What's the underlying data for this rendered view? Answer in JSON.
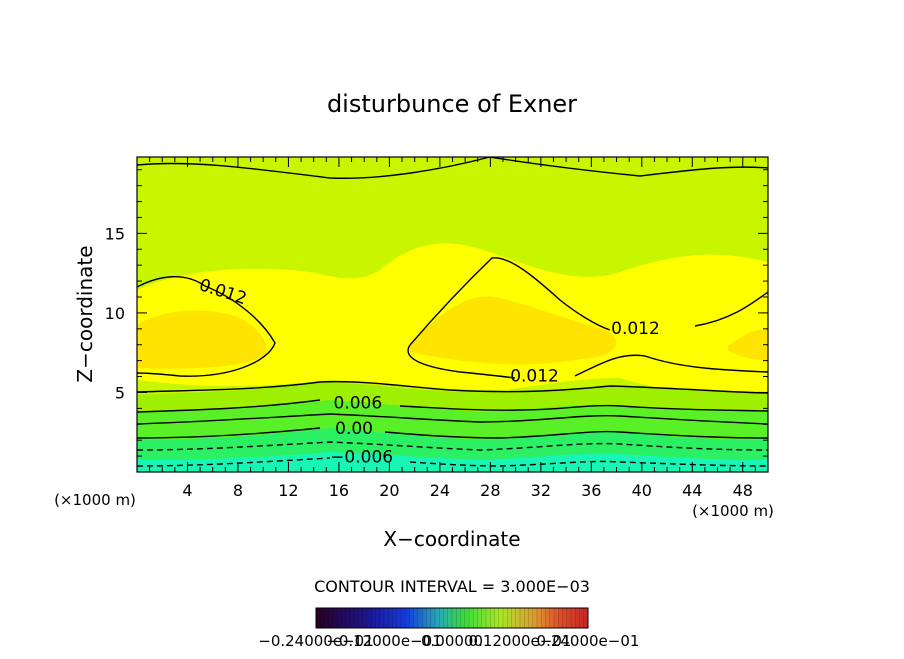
{
  "chart_data": {
    "type": "heatmap",
    "title": "disturbunce of Exner",
    "xlabel": "X−coordinate",
    "ylabel": "Z−coordinate",
    "x_unit_left": "(×1000 m)",
    "x_unit_right": "(×1000 m)",
    "xlim": [
      0,
      50
    ],
    "ylim": [
      0,
      19.8
    ],
    "x_ticks": [
      4,
      8,
      12,
      16,
      20,
      24,
      28,
      32,
      36,
      40,
      44,
      48
    ],
    "y_ticks": [
      5,
      10,
      15
    ],
    "contour_interval_text": "CONTOUR INTERVAL = 3.000E−03",
    "colorbar_labels": [
      "−0.24000e−01",
      "−0.12000e−01",
      "0.00000",
      "0.12000e−01",
      "0.24000e−01"
    ],
    "colorbar_range": [
      -0.024,
      0.024
    ],
    "contour_labels": [
      {
        "text": "0.012",
        "x": 6.8,
        "y": 11.3,
        "angle": 18
      },
      {
        "text": "0.012",
        "x": 39.5,
        "y": 9.0,
        "angle": 0
      },
      {
        "text": "0.012",
        "x": 31.5,
        "y": 6.0,
        "angle": 0
      },
      {
        "text": "0.006",
        "x": 17.5,
        "y": 4.3,
        "angle": 0
      },
      {
        "text": "0.00",
        "x": 17.2,
        "y": 2.7,
        "angle": 0
      },
      {
        "text": "−0.006",
        "x": 17.8,
        "y": 0.9,
        "angle": 0
      }
    ],
    "contour_levels": [
      {
        "value": 0.012,
        "style": "solid"
      },
      {
        "value": 0.009,
        "style": "solid"
      },
      {
        "value": 0.006,
        "style": "solid"
      },
      {
        "value": 0.003,
        "style": "solid"
      },
      {
        "value": 0.0,
        "style": "solid"
      },
      {
        "value": -0.003,
        "style": "dashed"
      },
      {
        "value": -0.006,
        "style": "dashed"
      }
    ],
    "colors": {
      "low": "#19f5b4",
      "mid_green": "#3cf03c",
      "yellow_green": "#d2f500",
      "yellow": "#ffff00",
      "orange_yellow": "#ffdc00"
    }
  }
}
